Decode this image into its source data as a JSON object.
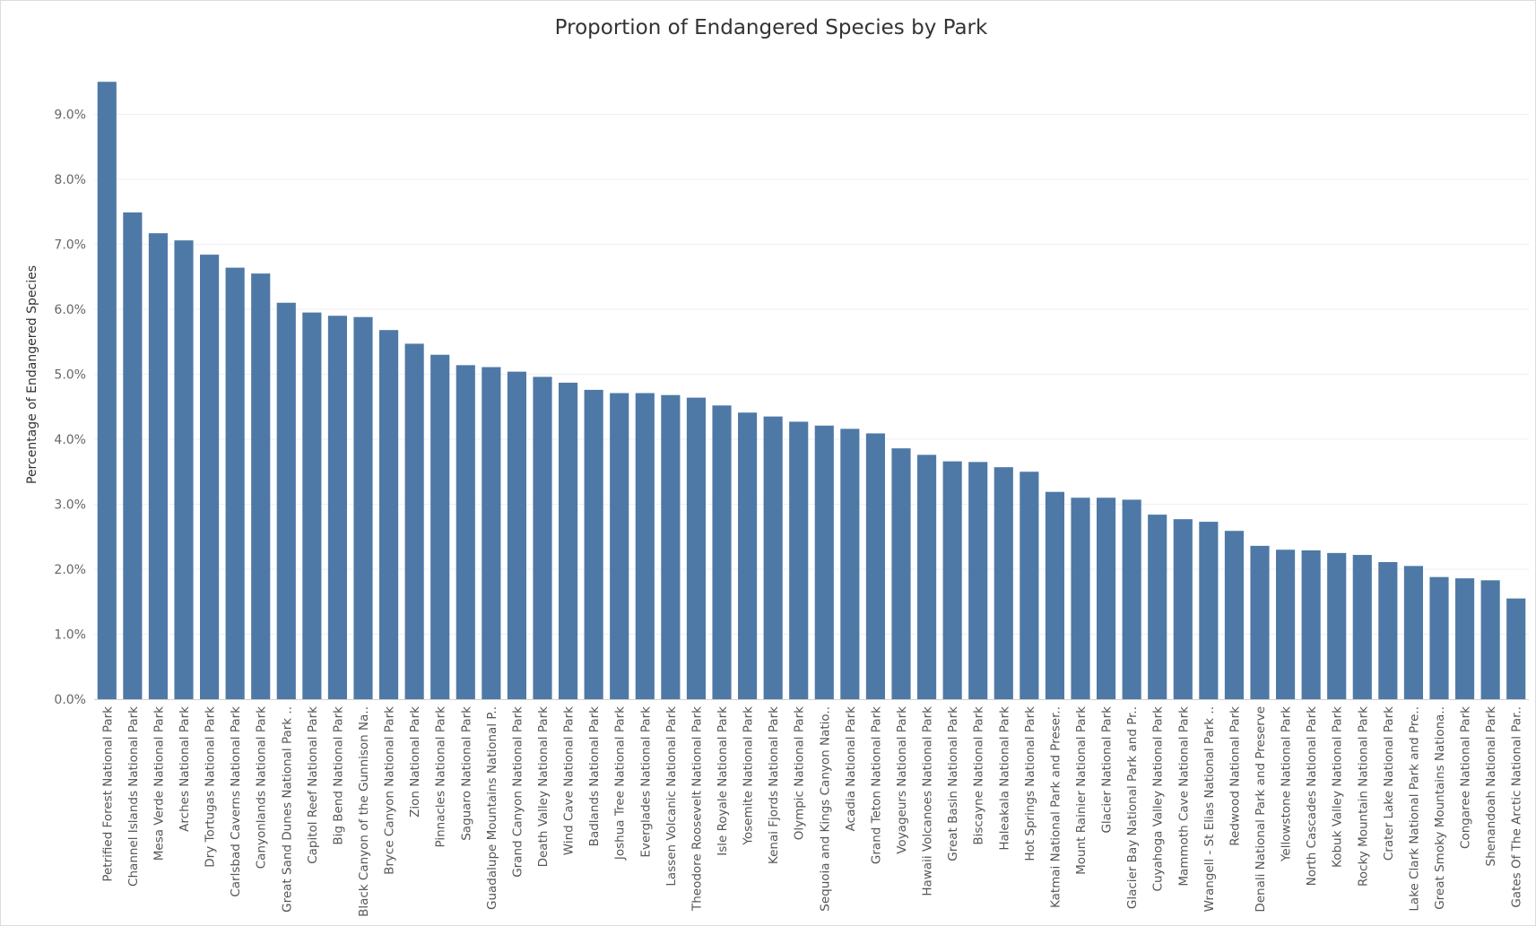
{
  "chart_data": {
    "type": "bar",
    "title": "Proportion of Endangered Species by Park",
    "xlabel": "",
    "ylabel": "Percentage of Endangered Species",
    "ylim": [
      0,
      10.0
    ],
    "y_ticks": [
      "0.0%",
      "1.0%",
      "2.0%",
      "3.0%",
      "4.0%",
      "5.0%",
      "6.0%",
      "7.0%",
      "8.0%",
      "9.0%"
    ],
    "bar_color": "#4e79a7",
    "categories": [
      "Petrified Forest National Park",
      "Channel Islands National Park",
      "Mesa Verde National Park",
      "Arches National Park",
      "Dry Tortugas National Park",
      "Carlsbad Caverns National Park",
      "Canyonlands National Park",
      "Great Sand Dunes National Park ..",
      "Capitol Reef National Park",
      "Big Bend National Park",
      "Black Canyon of the Gunnison Na..",
      "Bryce Canyon National Park",
      "Zion National Park",
      "Pinnacles National Park",
      "Saguaro National Park",
      "Guadalupe Mountains National P..",
      "Grand Canyon National Park",
      "Death Valley National Park",
      "Wind Cave National Park",
      "Badlands National Park",
      "Joshua Tree National Park",
      "Everglades National Park",
      "Lassen Volcanic National Park",
      "Theodore Roosevelt National Park",
      "Isle Royale National Park",
      "Yosemite National Park",
      "Kenai Fjords National Park",
      "Olympic National Park",
      "Sequoia and Kings Canyon Natio..",
      "Acadia National Park",
      "Grand Teton National Park",
      "Voyageurs National Park",
      "Hawaii Volcanoes National Park",
      "Great Basin National Park",
      "Biscayne National Park",
      "Haleakala National Park",
      "Hot Springs National Park",
      "Katmai National Park and Preser..",
      "Mount Rainier National Park",
      "Glacier National Park",
      "Glacier Bay National Park and Pr..",
      "Cuyahoga Valley National Park",
      "Mammoth Cave National Park",
      "Wrangell - St Elias National Park ..",
      "Redwood National Park",
      "Denali National Park and Preserve",
      "Yellowstone National Park",
      "North Cascades National Park",
      "Kobuk Valley National Park",
      "Rocky Mountain National Park",
      "Crater Lake National Park",
      "Lake Clark National Park and Pre..",
      "Great Smoky Mountains Nationa..",
      "Congaree National Park",
      "Shenandoah National Park",
      "Gates Of The Arctic National Par.."
    ],
    "values": [
      9.5,
      7.49,
      7.17,
      7.06,
      6.84,
      6.64,
      6.55,
      6.1,
      5.95,
      5.9,
      5.88,
      5.68,
      5.47,
      5.3,
      5.14,
      5.11,
      5.04,
      4.96,
      4.87,
      4.76,
      4.71,
      4.71,
      4.68,
      4.64,
      4.52,
      4.41,
      4.35,
      4.27,
      4.21,
      4.16,
      4.09,
      3.86,
      3.76,
      3.66,
      3.65,
      3.57,
      3.5,
      3.19,
      3.1,
      3.1,
      3.07,
      2.84,
      2.77,
      2.73,
      2.59,
      2.36,
      2.3,
      2.29,
      2.25,
      2.22,
      2.11,
      2.05,
      1.88,
      1.86,
      1.83,
      1.55
    ]
  }
}
